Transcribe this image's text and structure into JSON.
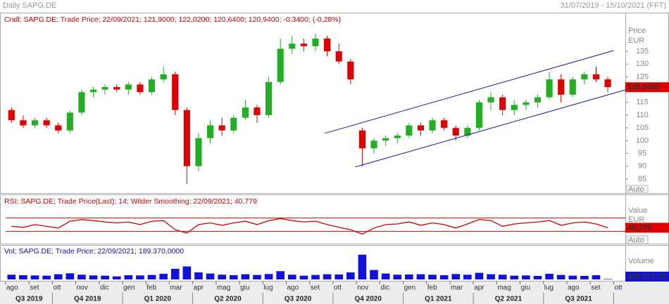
{
  "header": {
    "title": "Daily SAPG.DE",
    "range": "31/07/2019 - 15/10/2021 (FFT)"
  },
  "x_axis": {
    "months": [
      "ago",
      "set",
      "ott",
      "nov",
      "dic",
      "gen",
      "feb",
      "mar",
      "apr",
      "mag",
      "giu",
      "lug",
      "ago",
      "set",
      "ott",
      "nov",
      "dic",
      "gen",
      "feb",
      "mar",
      "apr",
      "mag",
      "giu",
      "lug",
      "ago",
      "set",
      "ott"
    ],
    "quarters": [
      "Q3 2019",
      "Q4 2019",
      "Q1 2020",
      "Q2 2020",
      "Q3 2020",
      "Q4 2020",
      "Q1 2021",
      "Q2 2021",
      "Q3 2021"
    ]
  },
  "chart_data": [
    {
      "type": "candlestick",
      "title": "Cndl; SAPG.DE; Trade Price; 22/09/2021; 121,9000; 122,0200; 120,6400; 120,9400; -0,3400; (-0,28%)",
      "axis_label": "Price",
      "unit": "EUR",
      "scale_mode": "Auto",
      "ylim": [
        80.3,
        149.6
      ],
      "yticks": [
        85,
        90,
        95,
        100,
        105,
        110,
        115,
        120,
        125,
        130,
        135
      ],
      "up_color": "#22b022",
      "down_color": "#e00000",
      "open": [
        112,
        108,
        106,
        108,
        106,
        104,
        111,
        119,
        120,
        121,
        120,
        122,
        119,
        124,
        126,
        112,
        90,
        101,
        106,
        104,
        109,
        113,
        110,
        123,
        136,
        138,
        137,
        140,
        135,
        131,
        104,
        97,
        100,
        101,
        102,
        106,
        104,
        108,
        105,
        102,
        105,
        115,
        117,
        112,
        114,
        115,
        117,
        124,
        118,
        124,
        126,
        124
      ],
      "high": [
        113,
        110,
        109,
        109,
        107,
        112,
        120,
        121,
        122,
        122,
        123,
        123,
        125,
        129,
        127,
        113,
        103,
        108,
        109,
        110,
        116,
        114,
        125,
        140,
        141,
        140,
        142,
        141,
        138,
        132,
        105,
        101,
        102,
        103,
        107,
        107,
        109,
        109,
        106,
        106,
        116,
        119,
        118,
        116,
        116,
        118,
        127,
        126,
        125,
        127,
        129,
        125
      ],
      "low": [
        107,
        105,
        105,
        105,
        103,
        103,
        110,
        117,
        118,
        119,
        118,
        118,
        118,
        123,
        110,
        83,
        88,
        99,
        102,
        103,
        108,
        107,
        109,
        122,
        134,
        135,
        135,
        133,
        130,
        122,
        90,
        95,
        98,
        99,
        101,
        102,
        103,
        104,
        100,
        101,
        104,
        112,
        110,
        110,
        112,
        113,
        116,
        115,
        117,
        122,
        123,
        119
      ],
      "close": [
        108,
        106,
        108,
        106,
        104,
        111,
        119,
        120,
        121,
        120,
        122,
        119,
        124,
        126,
        112,
        90,
        101,
        106,
        104,
        109,
        113,
        110,
        123,
        136,
        138,
        137,
        140,
        135,
        131,
        124,
        97,
        100,
        101,
        102,
        106,
        104,
        108,
        105,
        102,
        105,
        115,
        117,
        112,
        114,
        115,
        117,
        124,
        118,
        124,
        126,
        124,
        120.94
      ],
      "value_label": "120,9400",
      "trendline_color": "#1a1aa0",
      "trendlines": [
        {
          "x": [
            26.8,
            51.5
          ],
          "y": [
            102.9,
            135.3
          ]
        },
        {
          "x": [
            29.4,
            52.5
          ],
          "y": [
            89.7,
            119.9
          ]
        }
      ]
    },
    {
      "type": "line",
      "title": "RSI; SAPG.DE; Trade Price(Last);  14; Wilder Smoothing; 22/09/2021; 40,779",
      "axis_label": "Value",
      "unit": "EUR",
      "scale_mode": "Auto",
      "ylim": [
        -2,
        135
      ],
      "levels": [
        30,
        70
      ],
      "color": "#d00000",
      "values": [
        45,
        42,
        50,
        45,
        40,
        60,
        65,
        62,
        58,
        55,
        58,
        50,
        60,
        62,
        35,
        25,
        50,
        55,
        48,
        55,
        60,
        50,
        62,
        68,
        62,
        58,
        60,
        50,
        42,
        35,
        22,
        40,
        50,
        52,
        58,
        48,
        55,
        50,
        40,
        52,
        65,
        62,
        45,
        52,
        55,
        58,
        62,
        48,
        55,
        58,
        52,
        40.779
      ],
      "value_label": "40,779"
    },
    {
      "type": "bar",
      "title": "Vol; SAPG.DE; Trade Price;  22/09/2021; 189.370,0000",
      "axis_label": "Volume",
      "ylim": [
        0,
        14000000
      ],
      "color": "#1010e0",
      "values": [
        2000000,
        1800000,
        1700000,
        1600000,
        2200000,
        2600000,
        2000000,
        1700000,
        1600000,
        1300000,
        1800000,
        1700000,
        1900000,
        2400000,
        4500000,
        5500000,
        3000000,
        2500000,
        2000000,
        1800000,
        2200000,
        1900000,
        2300000,
        3500000,
        2000000,
        1600000,
        1900000,
        2200000,
        2100000,
        3000000,
        10500000,
        4000000,
        2500000,
        2000000,
        2100000,
        2200000,
        2000000,
        1800000,
        2300000,
        2000000,
        2800000,
        2200000,
        2000000,
        1600000,
        1700000,
        1500000,
        2400000,
        1900000,
        1600000,
        1500000,
        1800000,
        189370
      ],
      "value_label": "189.370,00"
    }
  ]
}
